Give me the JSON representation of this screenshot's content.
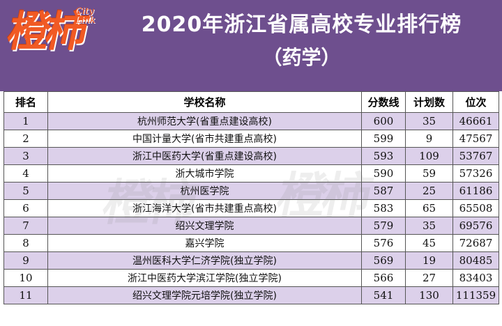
{
  "logo": {
    "main": "橙柿",
    "sub_line1": "City",
    "sub_line2": "Link"
  },
  "title": "2020年浙江省属高校专业排行榜",
  "subtitle": "（药学）",
  "table": {
    "headers": [
      "排名",
      "学校名称",
      "分数线",
      "计划数",
      "位次"
    ],
    "rows": [
      [
        "1",
        "杭州师范大学(省重点建设高校)",
        "600",
        "35",
        "46661"
      ],
      [
        "2",
        "中国计量大学(省市共建重点高校)",
        "599",
        "9",
        "47567"
      ],
      [
        "3",
        "浙江中医药大学(省重点建设高校)",
        "593",
        "109",
        "53767"
      ],
      [
        "4",
        "浙大城市学院",
        "590",
        "59",
        "57326"
      ],
      [
        "5",
        "杭州医学院",
        "587",
        "25",
        "61186"
      ],
      [
        "6",
        "浙江海洋大学(省市共建重点高校)",
        "583",
        "65",
        "65508"
      ],
      [
        "7",
        "绍兴文理学院",
        "579",
        "35",
        "69576"
      ],
      [
        "8",
        "嘉兴学院",
        "576",
        "45",
        "72687"
      ],
      [
        "9",
        "温州医科大学仁济学院(独立学院)",
        "569",
        "19",
        "80485"
      ],
      [
        "10",
        "浙江中医药大学滨江学院(独立学院)",
        "566",
        "27",
        "83403"
      ],
      [
        "11",
        "绍兴文理学院元培学院(独立学院)",
        "541",
        "130",
        "111359"
      ]
    ]
  },
  "colors": {
    "header_bg": "#6e4f8e",
    "row_alt": "#dcd0ea",
    "logo": "#f15a24"
  }
}
